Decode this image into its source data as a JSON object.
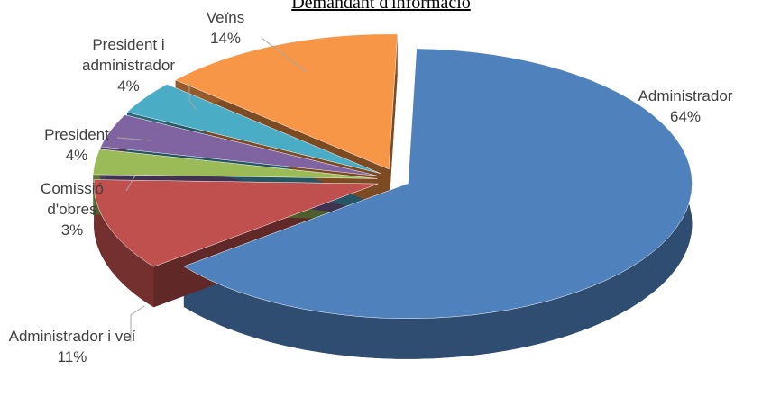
{
  "chart_data": {
    "type": "pie3d",
    "title": "Demandant d'informació",
    "categories": [
      "Administrador",
      "Administrador i veí",
      "Comissió d'obres",
      "President",
      "President i administrador",
      "Veïns"
    ],
    "values": [
      64,
      11,
      3,
      4,
      4,
      14
    ],
    "value_labels": [
      "64%",
      "11%",
      "3%",
      "4%",
      "4%",
      "14%"
    ],
    "colors": [
      "#4f81bd",
      "#c0504d",
      "#9bbb59",
      "#8064a2",
      "#4bacc6",
      "#f79646"
    ]
  }
}
